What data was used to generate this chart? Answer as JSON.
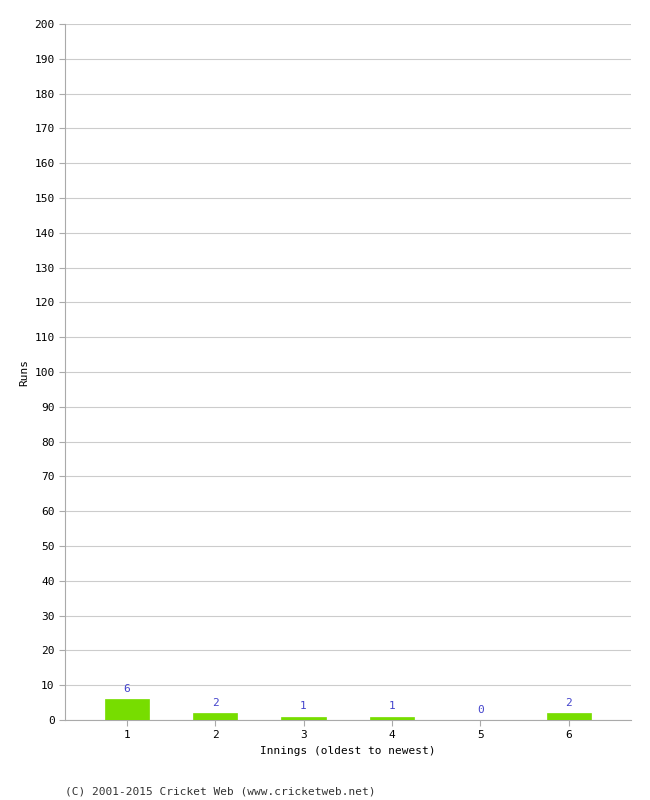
{
  "innings": [
    1,
    2,
    3,
    4,
    5,
    6
  ],
  "runs": [
    6,
    2,
    1,
    1,
    0,
    2
  ],
  "bar_color": "#77dd00",
  "bar_edge_color": "#77dd00",
  "label_color": "#4444cc",
  "ylabel": "Runs",
  "xlabel": "Innings (oldest to newest)",
  "ylim": [
    0,
    200
  ],
  "yticks": [
    0,
    10,
    20,
    30,
    40,
    50,
    60,
    70,
    80,
    90,
    100,
    110,
    120,
    130,
    140,
    150,
    160,
    170,
    180,
    190,
    200
  ],
  "footer": "(C) 2001-2015 Cricket Web (www.cricketweb.net)",
  "background_color": "#ffffff",
  "grid_color": "#cccccc",
  "label_fontsize": 8,
  "axis_fontsize": 8,
  "footer_fontsize": 8,
  "bar_width": 0.5
}
